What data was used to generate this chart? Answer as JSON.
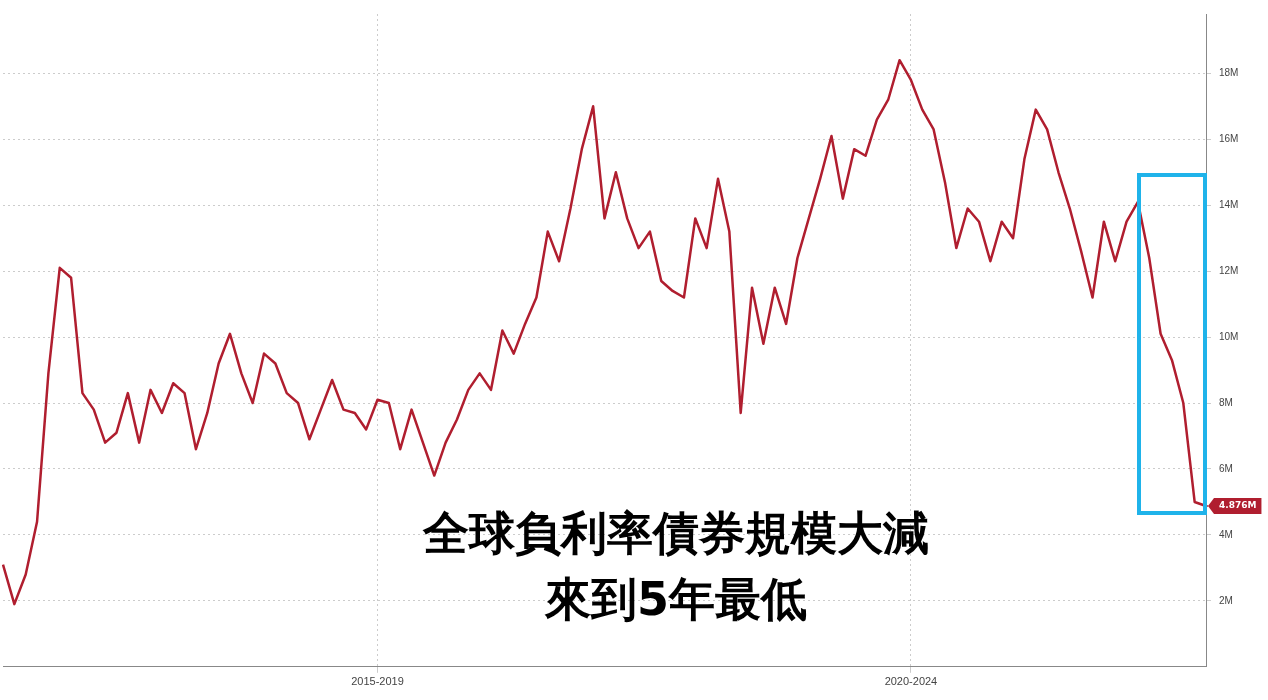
{
  "chart_data": {
    "type": "line",
    "title": "全球負利率債券規模大減",
    "subtitle": "來到5年最低",
    "categories": [
      null,
      null,
      null,
      null,
      null,
      null,
      null,
      null,
      null,
      null,
      null,
      null,
      null,
      null,
      null,
      null,
      null,
      null,
      null,
      null,
      null,
      null,
      null,
      null,
      null,
      null,
      null,
      null,
      null,
      null,
      null,
      null,
      null,
      "2015-2019",
      null,
      null,
      null,
      null,
      null,
      null,
      null,
      null,
      null,
      null,
      null,
      null,
      null,
      null,
      null,
      null,
      null,
      null,
      null,
      null,
      null,
      null,
      null,
      null,
      null,
      null,
      null,
      null,
      null,
      null,
      null,
      null,
      null,
      null,
      null,
      null,
      null,
      null,
      null,
      null,
      null,
      null,
      null,
      null,
      null,
      null,
      "2020-2024",
      null,
      null,
      null,
      null,
      null,
      null,
      null,
      null,
      null,
      null,
      null,
      null,
      null,
      null,
      null,
      null,
      null,
      null,
      null,
      null,
      null,
      null,
      null,
      null,
      null,
      null
    ],
    "series": [
      {
        "color": "#b01e2f",
        "values": [
          3.1,
          1.9,
          2.8,
          4.4,
          8.9,
          12.1,
          11.8,
          8.3,
          7.8,
          6.8,
          7.1,
          8.3,
          6.8,
          8.4,
          7.7,
          8.6,
          8.3,
          6.6,
          7.7,
          9.2,
          10.1,
          8.9,
          8.0,
          9.5,
          9.2,
          8.3,
          8.0,
          6.9,
          7.8,
          8.7,
          7.8,
          7.7,
          7.2,
          8.1,
          8.0,
          6.6,
          7.8,
          6.8,
          5.8,
          6.8,
          7.5,
          8.4,
          8.9,
          8.4,
          10.2,
          9.5,
          10.4,
          11.2,
          13.2,
          12.3,
          13.9,
          15.7,
          17.0,
          13.6,
          15.0,
          13.6,
          12.7,
          13.2,
          11.7,
          11.4,
          11.2,
          13.6,
          12.7,
          14.8,
          13.2,
          7.7,
          11.5,
          9.8,
          11.5,
          10.4,
          12.4,
          13.6,
          14.8,
          16.1,
          14.2,
          15.7,
          15.5,
          16.6,
          17.2,
          18.4,
          17.8,
          16.9,
          16.3,
          14.7,
          12.7,
          13.9,
          13.5,
          12.3,
          13.5,
          13.0,
          15.4,
          16.9,
          16.3,
          15.0,
          13.9,
          12.6,
          11.2,
          13.5,
          12.3,
          13.5,
          14.1,
          12.4,
          10.1,
          9.3,
          8.0,
          5.0,
          4.876
        ],
        "value_labels": [
          null,
          null,
          null,
          null,
          null,
          null,
          null,
          null,
          null,
          null,
          null,
          null,
          null,
          null,
          null,
          null,
          null,
          null,
          null,
          null,
          null,
          null,
          null,
          null,
          null,
          null,
          null,
          null,
          null,
          null,
          null,
          null,
          null,
          null,
          null,
          null,
          null,
          null,
          null,
          null,
          null,
          null,
          null,
          null,
          null,
          null,
          null,
          null,
          null,
          null,
          null,
          null,
          null,
          null,
          null,
          null,
          null,
          null,
          null,
          null,
          null,
          null,
          null,
          null,
          null,
          null,
          null,
          null,
          null,
          null,
          null,
          null,
          null,
          null,
          null,
          null,
          null,
          null,
          null,
          null,
          null,
          null,
          null,
          null,
          null,
          null,
          null,
          null,
          null,
          null,
          null,
          null,
          null,
          null,
          null,
          null,
          null,
          null,
          null,
          null,
          null,
          null,
          null,
          null,
          null,
          null,
          "4.876M"
        ]
      }
    ],
    "ylim": [
      0,
      19.8
    ],
    "yticks": [
      {
        "value": 2,
        "label": "2M"
      },
      {
        "value": 4,
        "label": "4M"
      },
      {
        "value": 6,
        "label": "6M"
      },
      {
        "value": 8,
        "label": "8M"
      },
      {
        "value": 10,
        "label": "10M"
      },
      {
        "value": 12,
        "label": "12M"
      },
      {
        "value": 14,
        "label": "14M"
      },
      {
        "value": 16,
        "label": "16M"
      },
      {
        "value": 18,
        "label": "18M"
      }
    ],
    "grid": true,
    "marker": "none",
    "line_style": "solid"
  }
}
